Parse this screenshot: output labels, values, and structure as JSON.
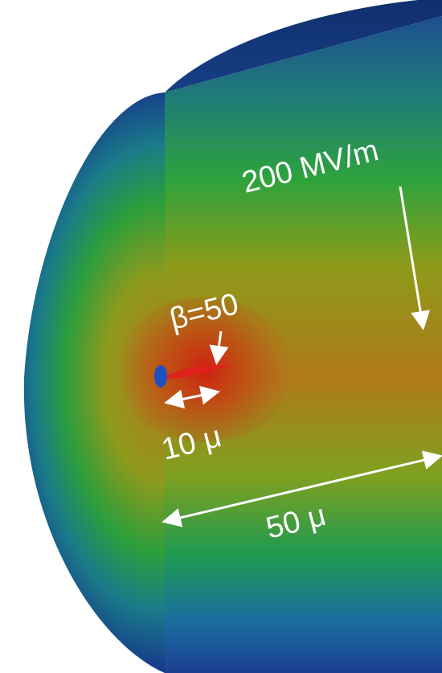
{
  "annotations": [
    "200 MV/m",
    "β=50",
    "10 μ",
    "50 μ"
  ]
}
